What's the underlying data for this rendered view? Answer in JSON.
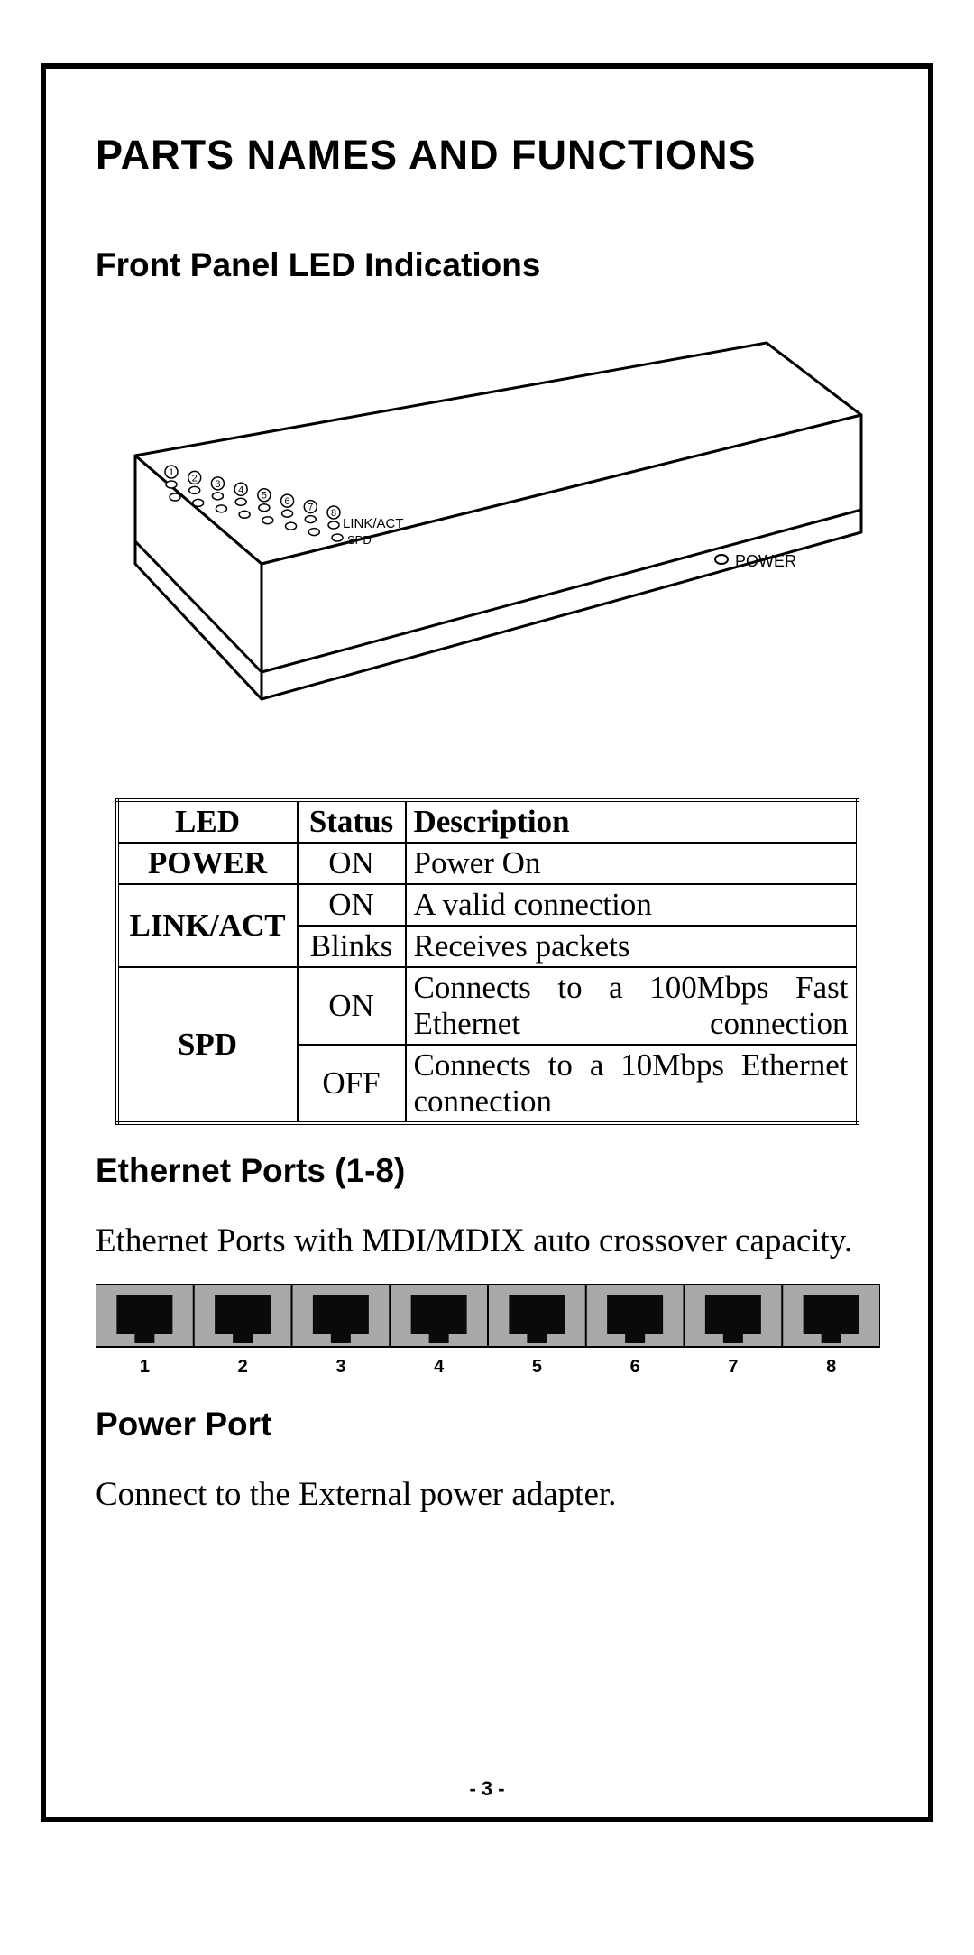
{
  "title": "PARTS NAMES AND FUNCTIONS",
  "section1": {
    "title": "Front Panel LED Indications"
  },
  "device_diagram": {
    "led_numbers": [
      "1",
      "2",
      "3",
      "4",
      "5",
      "6",
      "7",
      "8"
    ],
    "row_labels": {
      "top": "LINK/ACT",
      "bottom": "SPD"
    },
    "power_label": "POWER"
  },
  "led_table": {
    "headers": {
      "led": "LED",
      "status": "Status",
      "description": "Description"
    },
    "rows": [
      {
        "led": "POWER",
        "status": "ON",
        "description": "Power On",
        "rowspan_led": 1,
        "justify": false
      },
      {
        "led": "LINK/ACT",
        "status": "ON",
        "description": "A valid connection",
        "rowspan_led": 2,
        "justify": false
      },
      {
        "status": "Blinks",
        "description": "Receives packets",
        "justify": false
      },
      {
        "led": "SPD",
        "status": "ON",
        "description": "Connects to a 100Mbps Fast Ethernet connection",
        "rowspan_led": 2,
        "justify": true
      },
      {
        "status": "OFF",
        "description": "Connects to a 10Mbps Ethernet connection",
        "justify": true
      }
    ]
  },
  "section2": {
    "title": "Ethernet Ports (1-8)",
    "text": "Ethernet Ports with MDI/MDIX auto crossover capacity.",
    "port_labels": [
      "1",
      "2",
      "3",
      "4",
      "5",
      "6",
      "7",
      "8"
    ]
  },
  "section3": {
    "title": "Power Port",
    "text": "Connect to the External power adapter."
  },
  "page_number": "- 3 -",
  "colors": {
    "text": "#000000",
    "background": "#ffffff",
    "port_bg": "#a9a9a9",
    "port_jack": "#0a0a0a"
  }
}
